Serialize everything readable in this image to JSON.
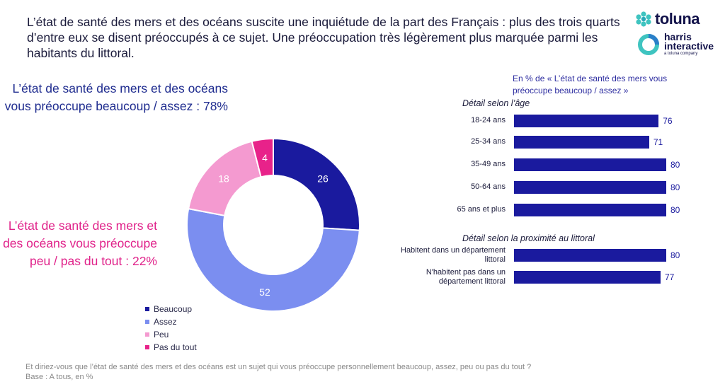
{
  "headline": "L’état de santé des mers et des océans suscite une inquiétude de la part des Français : plus des trois quarts d’entre eux se disent préoccupés à ce sujet. Une préoccupation très légèrement plus marquée parmi les habitants du littoral.",
  "logo": {
    "toluna": "toluna",
    "harris_line1": "harris",
    "harris_line2": "interactive",
    "harris_sub": "a toluna company"
  },
  "callout_top": "L’état de santé des mers et des océans vous préoccupe beaucoup / assez : 78%",
  "callout_bottom": "L’état de santé des mers et des océans vous préoccupe peu / pas du tout : 22%",
  "colors": {
    "beaucoup": "#1a1a9e",
    "assez": "#7b8ef0",
    "peu": "#f49ad0",
    "pas_du_tout": "#e8228a",
    "bar": "#1a1a9e"
  },
  "footnote": {
    "question": "Et diriez-vous que l’état de santé des mers et des océans est un sujet qui vous préoccupe personnellement beaucoup, assez, peu ou pas du tout ?",
    "base": "Base : A tous, en %"
  },
  "chart_data": [
    {
      "type": "pie",
      "variant": "donut",
      "categories": [
        "Beaucoup",
        "Assez",
        "Peu",
        "Pas du tout"
      ],
      "values": [
        26,
        52,
        18,
        4
      ],
      "colors": [
        "#1a1a9e",
        "#7b8ef0",
        "#f49ad0",
        "#e8228a"
      ],
      "legend_position": "bottom-left"
    },
    {
      "type": "bar",
      "orientation": "horizontal",
      "title": "En % de « L’état de santé des mers vous préoccupe beaucoup / assez »",
      "xlim": [
        0,
        100
      ],
      "grid": false,
      "groups": [
        {
          "title": "Détail selon l’âge",
          "categories": [
            "18-24 ans",
            "25-34 ans",
            "35-49 ans",
            "50-64 ans",
            "65 ans et plus"
          ],
          "values": [
            76,
            71,
            80,
            80,
            80
          ]
        },
        {
          "title": "Détail selon la proximité au littoral",
          "categories": [
            "Habitent dans un département littoral",
            "N'habitent pas dans un département littoral"
          ],
          "values": [
            80,
            77
          ]
        }
      ]
    }
  ]
}
